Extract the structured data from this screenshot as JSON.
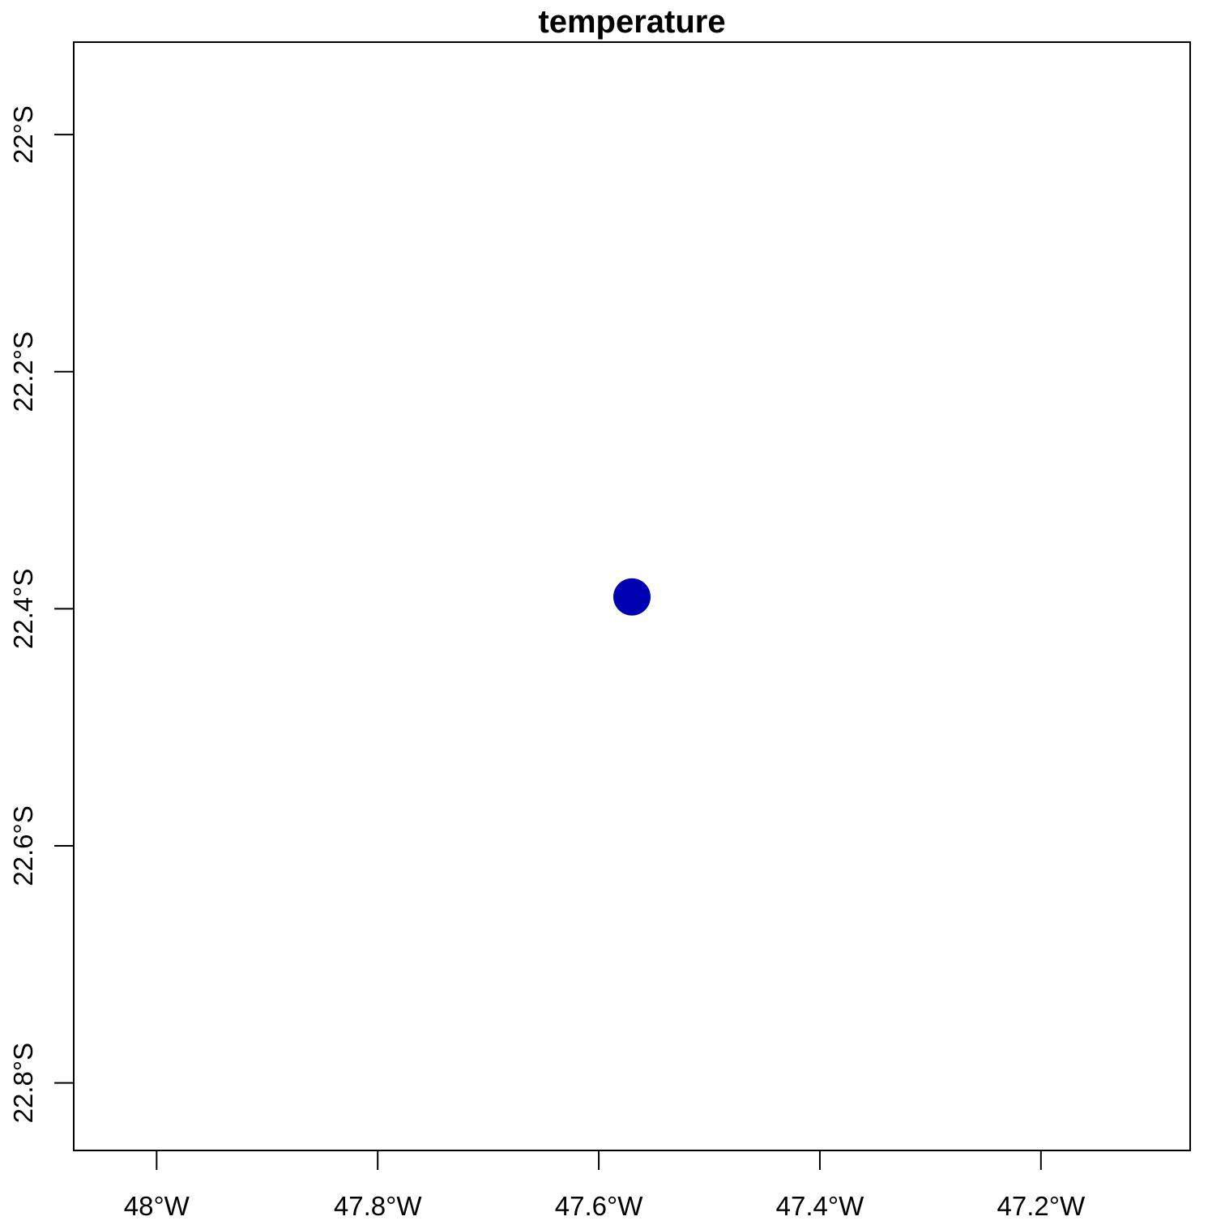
{
  "chart_data": {
    "type": "scatter",
    "title": "temperature",
    "xlabel": "",
    "ylabel": "",
    "x_axis": {
      "range": [
        -48.075,
        -47.065
      ],
      "ticks": [
        -48.0,
        -47.8,
        -47.6,
        -47.4,
        -47.2
      ],
      "tick_labels": [
        "48°W",
        "47.8°W",
        "47.6°W",
        "47.4°W",
        "47.2°W"
      ]
    },
    "y_axis": {
      "range": [
        -22.857,
        -21.922
      ],
      "ticks": [
        -22.0,
        -22.2,
        -22.4,
        -22.6,
        -22.8
      ],
      "tick_labels": [
        "22°S",
        "22.2°S",
        "22.4°S",
        "22.6°S",
        "22.8°S"
      ]
    },
    "grid": false,
    "series": [
      {
        "name": "temperature",
        "color": "#0000B3",
        "points": [
          {
            "x": -47.57,
            "y": -22.39
          }
        ]
      }
    ]
  }
}
